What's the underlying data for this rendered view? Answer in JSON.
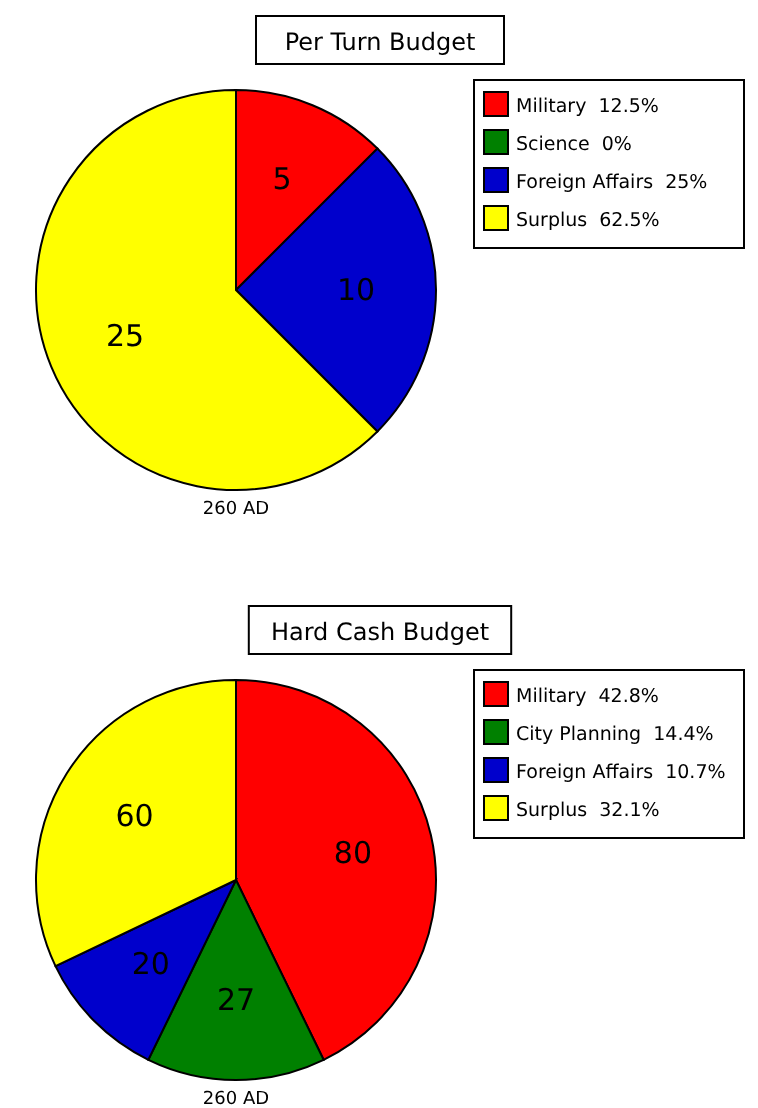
{
  "chart_data": [
    {
      "type": "pie",
      "title": "Per Turn Budget",
      "categories": [
        "Military  12.5%",
        "Science  0%",
        "Foreign Affairs  25%",
        "Surplus  62.5%"
      ],
      "values": [
        5,
        0,
        10,
        25
      ],
      "value_labels": [
        "5",
        null,
        "10",
        "25"
      ],
      "colors": [
        "#ff0000",
        "#008000",
        "#0000cc",
        "#ffff00"
      ],
      "legend": "top right",
      "annotations": [
        "260 AD"
      ]
    },
    {
      "type": "pie",
      "title": "Hard Cash Budget",
      "categories": [
        "Military  42.8%",
        "City Planning  14.4%",
        "Foreign Affairs  10.7%",
        "Surplus  32.1%"
      ],
      "values": [
        80,
        27,
        20,
        60
      ],
      "value_labels": [
        "80",
        "27",
        "20",
        "60"
      ],
      "colors": [
        "#ff0000",
        "#008000",
        "#0000cc",
        "#ffff00"
      ],
      "legend": "top right",
      "annotations": [
        "260 AD"
      ]
    }
  ]
}
